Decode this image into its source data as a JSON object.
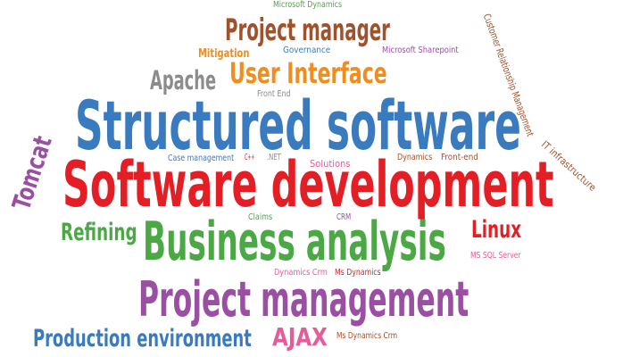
{
  "colors": {
    "blue": "#3a7bbf",
    "red": "#e31e24",
    "green": "#4aa845",
    "purple": "#9b4fa3",
    "brown": "#a0522d",
    "orange": "#f28c1c",
    "gray": "#8c8c8c",
    "pink": "#e75b9a"
  },
  "words": {
    "microsoft_dynamics_top": "Microsoft Dynamics",
    "project_manager": "Project manager",
    "governance": "Governance",
    "microsoft_sharepoint": "Microsoft Sharepoint",
    "mitigation": "Mitigation",
    "apache": "Apache",
    "user_interface": "User Interface",
    "front_end": "Front End",
    "customer_relationship_management": "Customer Relationship Management",
    "structured_software": "Structured software",
    "it_infrastructure": "IT infrastructure",
    "tomcat": "Tomcat",
    "case_management": "Case management",
    "cpp": "C++",
    "dotnet": ".NET",
    "solutions": "Solutions",
    "dynamics": "Dynamics",
    "front_end_dash": "Front-end",
    "software_development": "Software development",
    "refining": "Refining",
    "claims": "Claims",
    "crm": "CRM",
    "linux": "Linux",
    "business_analysis": "Business analysis",
    "ms_sql_server": "MS SQL Server",
    "dynamics_crm": "Dynamics Crm",
    "ms_dynamics": "Ms Dynamics",
    "project_management": "Project management",
    "production_environment": "Production environment",
    "ajax": "AJAX",
    "ms_dynamics_crm": "Ms Dynamics Crm"
  }
}
